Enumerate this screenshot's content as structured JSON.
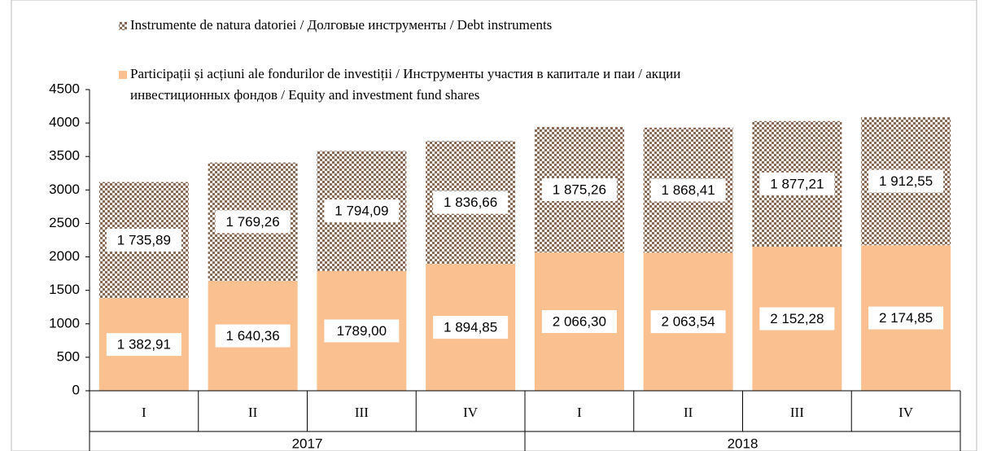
{
  "chart_data": {
    "type": "bar",
    "stacked": true,
    "categories": [
      "I",
      "II",
      "III",
      "IV",
      "I",
      "II",
      "III",
      "IV"
    ],
    "group_labels": [
      "2017",
      "2018"
    ],
    "series": [
      {
        "name": "Participații și acțiuni ale fondurilor de investiții / Инструменты участия в капитале и паи / акции инвестиционных фондов / Equity and investment fund shares",
        "color": "#fac090",
        "values": [
          1382.91,
          1640.36,
          1789.0,
          1894.85,
          2066.3,
          2063.54,
          2152.28,
          2174.85
        ],
        "value_labels": [
          "1 382,91",
          "1 640,36",
          "1789,00",
          "1 894,85",
          "2 066,30",
          "2 063,54",
          "2 152,28",
          "2 174,85"
        ]
      },
      {
        "name": "Instrumente de natura datoriei / Долговые инструменты / Debt instruments",
        "color": "#8b6a55",
        "values": [
          1735.89,
          1769.26,
          1794.09,
          1836.66,
          1875.26,
          1868.41,
          1877.21,
          1912.55
        ],
        "value_labels": [
          "1 735,89",
          "1 769,26",
          "1 794,09",
          "1 836,66",
          "1 875,26",
          "1 868,41",
          "1 877,21",
          "1 912,55"
        ]
      }
    ],
    "ylim": [
      0,
      4500
    ],
    "yticks": [
      0,
      500,
      1000,
      1500,
      2000,
      2500,
      3000,
      3500,
      4000,
      4500
    ]
  }
}
